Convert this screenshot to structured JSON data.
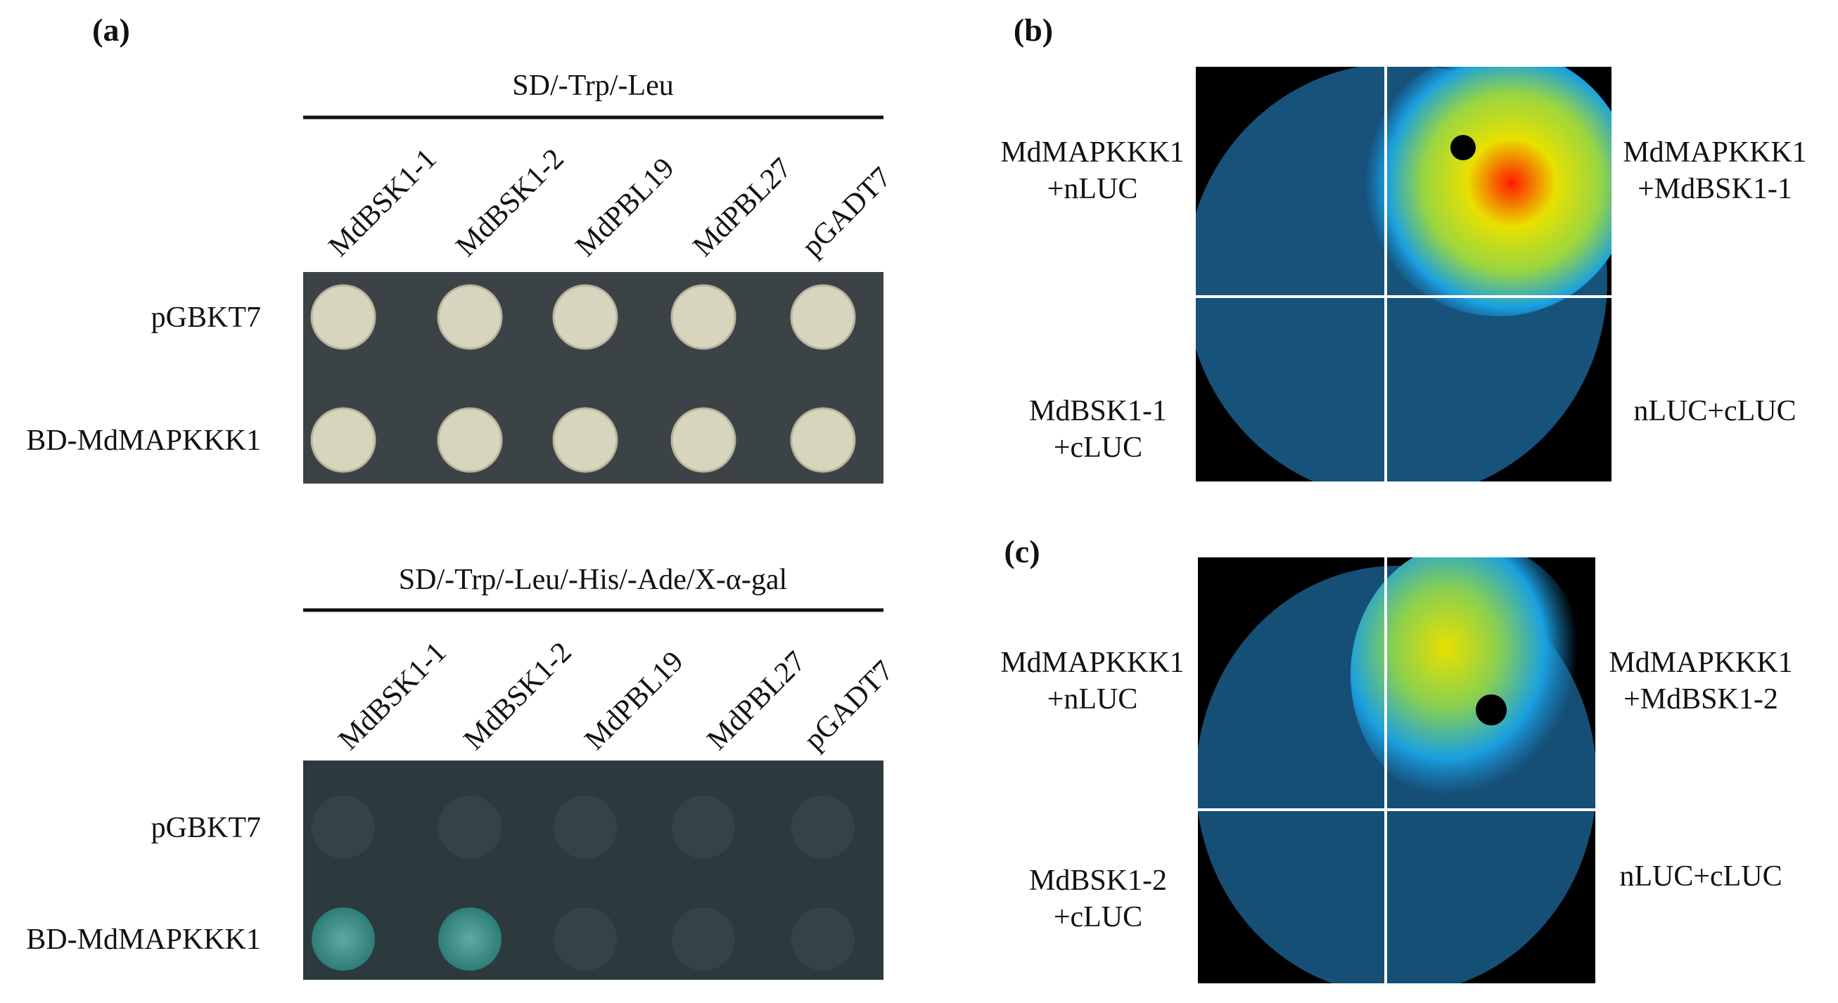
{
  "panel_a": {
    "label": "(a)",
    "blocks": [
      {
        "medium": "SD/-Trp/-Leu",
        "columns": [
          "MdBSK1-1",
          "MdBSK1-2",
          "MdPBL19",
          "MdPBL27",
          "pGADT7"
        ],
        "rows": [
          "pGBKT7",
          "BD-MdMAPKKK1"
        ]
      },
      {
        "medium": "SD/-Trp/-Leu/-His/-Ade/X-α-gal",
        "columns": [
          "MdBSK1-1",
          "MdBSK1-2",
          "MdPBL19",
          "MdPBL27",
          "pGADT7"
        ],
        "rows": [
          "pGBKT7",
          "BD-MdMAPKKK1"
        ]
      }
    ]
  },
  "panel_b": {
    "label": "(b)",
    "quadrants": [
      [
        "MdMAPKKK1",
        "+nLUC"
      ],
      [
        "MdMAPKKK1",
        "+MdBSK1-1"
      ],
      [
        "MdBSK1-1",
        "+cLUC"
      ],
      [
        "nLUC+cLUC"
      ]
    ]
  },
  "panel_c": {
    "label": "(c)",
    "quadrants": [
      [
        "MdMAPKKK1",
        "+nLUC"
      ],
      [
        "MdMAPKKK1",
        "+MdBSK1-2"
      ],
      [
        "MdBSK1-2",
        "+cLUC"
      ],
      [
        "nLUC+cLUC"
      ]
    ]
  }
}
